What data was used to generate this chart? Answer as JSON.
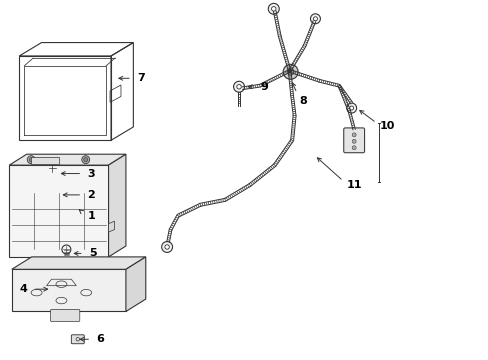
{
  "bg_color": "#ffffff",
  "line_color": "#333333",
  "label_color": "#222222"
}
